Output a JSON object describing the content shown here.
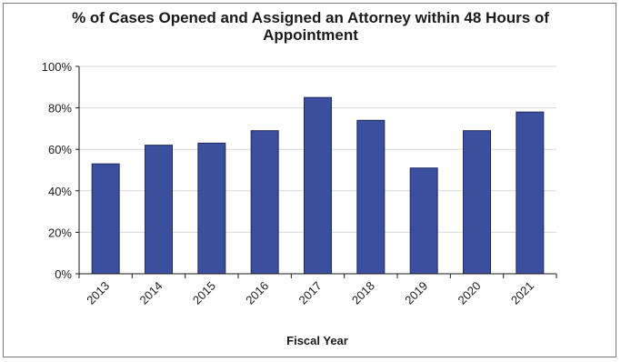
{
  "chart_data": {
    "type": "bar",
    "title_line1": "% of Cases Opened and Assigned an Attorney within 48 Hours of",
    "title_line2": "Appointment",
    "xlabel": "Fiscal Year",
    "ylabel": "",
    "categories": [
      "2013",
      "2014",
      "2015",
      "2016",
      "2017",
      "2018",
      "2019",
      "2020",
      "2021"
    ],
    "values": [
      53,
      62,
      63,
      69,
      85,
      74,
      51,
      69,
      78
    ],
    "ylim": [
      0,
      100
    ],
    "yticks": [
      0,
      20,
      40,
      60,
      80,
      100
    ],
    "ytick_labels": [
      "0%",
      "20%",
      "40%",
      "60%",
      "80%",
      "100%"
    ],
    "bar_color": "#3a4f9e",
    "grid": true,
    "legend": "none"
  }
}
